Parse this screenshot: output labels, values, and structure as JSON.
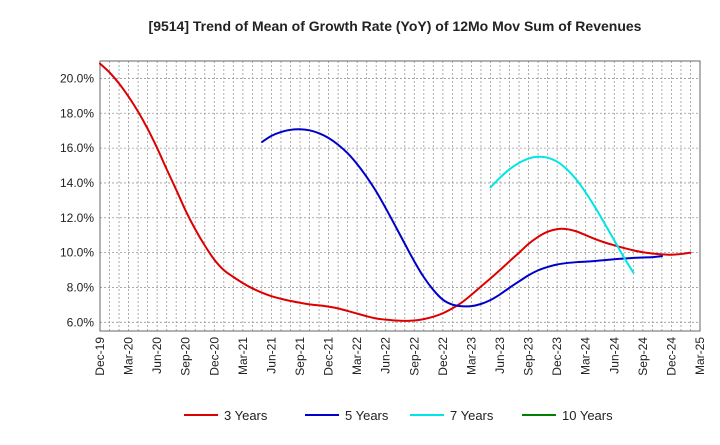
{
  "chart_data": {
    "type": "line",
    "title": "[9514]  Trend of Mean of Growth Rate (YoY) of 12Mo Mov Sum of Revenues",
    "xlabel": "",
    "ylabel": "",
    "ylim": [
      5.5,
      21.0
    ],
    "y_ticks": [
      6.0,
      8.0,
      10.0,
      12.0,
      14.0,
      16.0,
      18.0,
      20.0
    ],
    "y_tick_labels": [
      "6.0%",
      "8.0%",
      "10.0%",
      "12.0%",
      "14.0%",
      "16.0%",
      "18.0%",
      "20.0%"
    ],
    "x_tick_labels": [
      "Dec-19",
      "Mar-20",
      "Jun-20",
      "Sep-20",
      "Dec-20",
      "Mar-21",
      "Jun-21",
      "Sep-21",
      "Dec-21",
      "Mar-22",
      "Jun-22",
      "Sep-22",
      "Dec-22",
      "Mar-23",
      "Jun-23",
      "Sep-23",
      "Dec-23",
      "Mar-24",
      "Jun-24",
      "Sep-24",
      "Dec-24",
      "Mar-25"
    ],
    "grid": true,
    "legend_position": "bottom",
    "series": [
      {
        "name": "3 Years",
        "color": "#dd0000",
        "points": [
          [
            0,
            20.85
          ],
          [
            0.33,
            20.35
          ],
          [
            0.67,
            19.7
          ],
          [
            1,
            18.95
          ],
          [
            1.33,
            18.1
          ],
          [
            1.67,
            17.1
          ],
          [
            2,
            16.0
          ],
          [
            2.33,
            14.8
          ],
          [
            2.67,
            13.6
          ],
          [
            3,
            12.4
          ],
          [
            3.33,
            11.35
          ],
          [
            3.67,
            10.4
          ],
          [
            4,
            9.6
          ],
          [
            4.33,
            9.0
          ],
          [
            4.67,
            8.6
          ],
          [
            5,
            8.25
          ],
          [
            5.33,
            7.95
          ],
          [
            5.67,
            7.7
          ],
          [
            6,
            7.5
          ],
          [
            6.33,
            7.35
          ],
          [
            6.67,
            7.22
          ],
          [
            7,
            7.12
          ],
          [
            7.33,
            7.03
          ],
          [
            7.67,
            6.97
          ],
          [
            8,
            6.9
          ],
          [
            8.33,
            6.8
          ],
          [
            8.67,
            6.65
          ],
          [
            9,
            6.5
          ],
          [
            9.33,
            6.35
          ],
          [
            9.67,
            6.22
          ],
          [
            10,
            6.15
          ],
          [
            10.33,
            6.1
          ],
          [
            10.67,
            6.08
          ],
          [
            11,
            6.1
          ],
          [
            11.33,
            6.18
          ],
          [
            11.67,
            6.32
          ],
          [
            12,
            6.52
          ],
          [
            12.33,
            6.8
          ],
          [
            12.67,
            7.15
          ],
          [
            13,
            7.58
          ],
          [
            13.33,
            8.05
          ],
          [
            13.67,
            8.52
          ],
          [
            14,
            9.0
          ],
          [
            14.33,
            9.5
          ],
          [
            14.67,
            10.0
          ],
          [
            15,
            10.5
          ],
          [
            15.33,
            10.9
          ],
          [
            15.67,
            11.2
          ],
          [
            16,
            11.35
          ],
          [
            16.33,
            11.35
          ],
          [
            16.67,
            11.22
          ],
          [
            17,
            11.0
          ],
          [
            17.33,
            10.78
          ],
          [
            17.67,
            10.58
          ],
          [
            18,
            10.42
          ],
          [
            18.33,
            10.27
          ],
          [
            18.67,
            10.13
          ],
          [
            19,
            10.02
          ],
          [
            19.33,
            9.95
          ],
          [
            19.67,
            9.9
          ],
          [
            20,
            9.88
          ],
          [
            20.33,
            9.92
          ],
          [
            20.67,
            10.0
          ]
        ]
      },
      {
        "name": "5 Years",
        "color": "#0000cc",
        "points": [
          [
            5.67,
            16.35
          ],
          [
            6,
            16.7
          ],
          [
            6.33,
            16.92
          ],
          [
            6.67,
            17.05
          ],
          [
            7,
            17.08
          ],
          [
            7.33,
            17.02
          ],
          [
            7.67,
            16.85
          ],
          [
            8,
            16.58
          ],
          [
            8.33,
            16.2
          ],
          [
            8.67,
            15.7
          ],
          [
            9,
            15.08
          ],
          [
            9.33,
            14.35
          ],
          [
            9.67,
            13.5
          ],
          [
            10,
            12.55
          ],
          [
            10.33,
            11.55
          ],
          [
            10.67,
            10.5
          ],
          [
            11,
            9.5
          ],
          [
            11.33,
            8.6
          ],
          [
            11.67,
            7.85
          ],
          [
            12,
            7.3
          ],
          [
            12.33,
            7.02
          ],
          [
            12.67,
            6.92
          ],
          [
            13,
            6.93
          ],
          [
            13.33,
            7.05
          ],
          [
            13.67,
            7.28
          ],
          [
            14,
            7.6
          ],
          [
            14.33,
            7.98
          ],
          [
            14.67,
            8.35
          ],
          [
            15,
            8.7
          ],
          [
            15.33,
            8.98
          ],
          [
            15.67,
            9.18
          ],
          [
            16,
            9.32
          ],
          [
            16.33,
            9.4
          ],
          [
            16.67,
            9.45
          ],
          [
            17,
            9.48
          ],
          [
            17.33,
            9.52
          ],
          [
            17.67,
            9.57
          ],
          [
            18,
            9.62
          ],
          [
            18.33,
            9.66
          ],
          [
            18.67,
            9.7
          ],
          [
            19,
            9.72
          ],
          [
            19.33,
            9.74
          ],
          [
            19.67,
            9.8
          ]
        ]
      },
      {
        "name": "7 Years",
        "color": "#00e5e5",
        "points": [
          [
            13.67,
            13.75
          ],
          [
            14,
            14.3
          ],
          [
            14.33,
            14.78
          ],
          [
            14.67,
            15.15
          ],
          [
            15,
            15.4
          ],
          [
            15.33,
            15.5
          ],
          [
            15.67,
            15.45
          ],
          [
            16,
            15.22
          ],
          [
            16.33,
            14.8
          ],
          [
            16.67,
            14.2
          ],
          [
            17,
            13.45
          ],
          [
            17.33,
            12.6
          ],
          [
            17.67,
            11.65
          ],
          [
            18,
            10.7
          ],
          [
            18.33,
            9.75
          ],
          [
            18.67,
            8.85
          ]
        ]
      },
      {
        "name": "10 Years",
        "color": "#008000",
        "points": []
      }
    ]
  }
}
